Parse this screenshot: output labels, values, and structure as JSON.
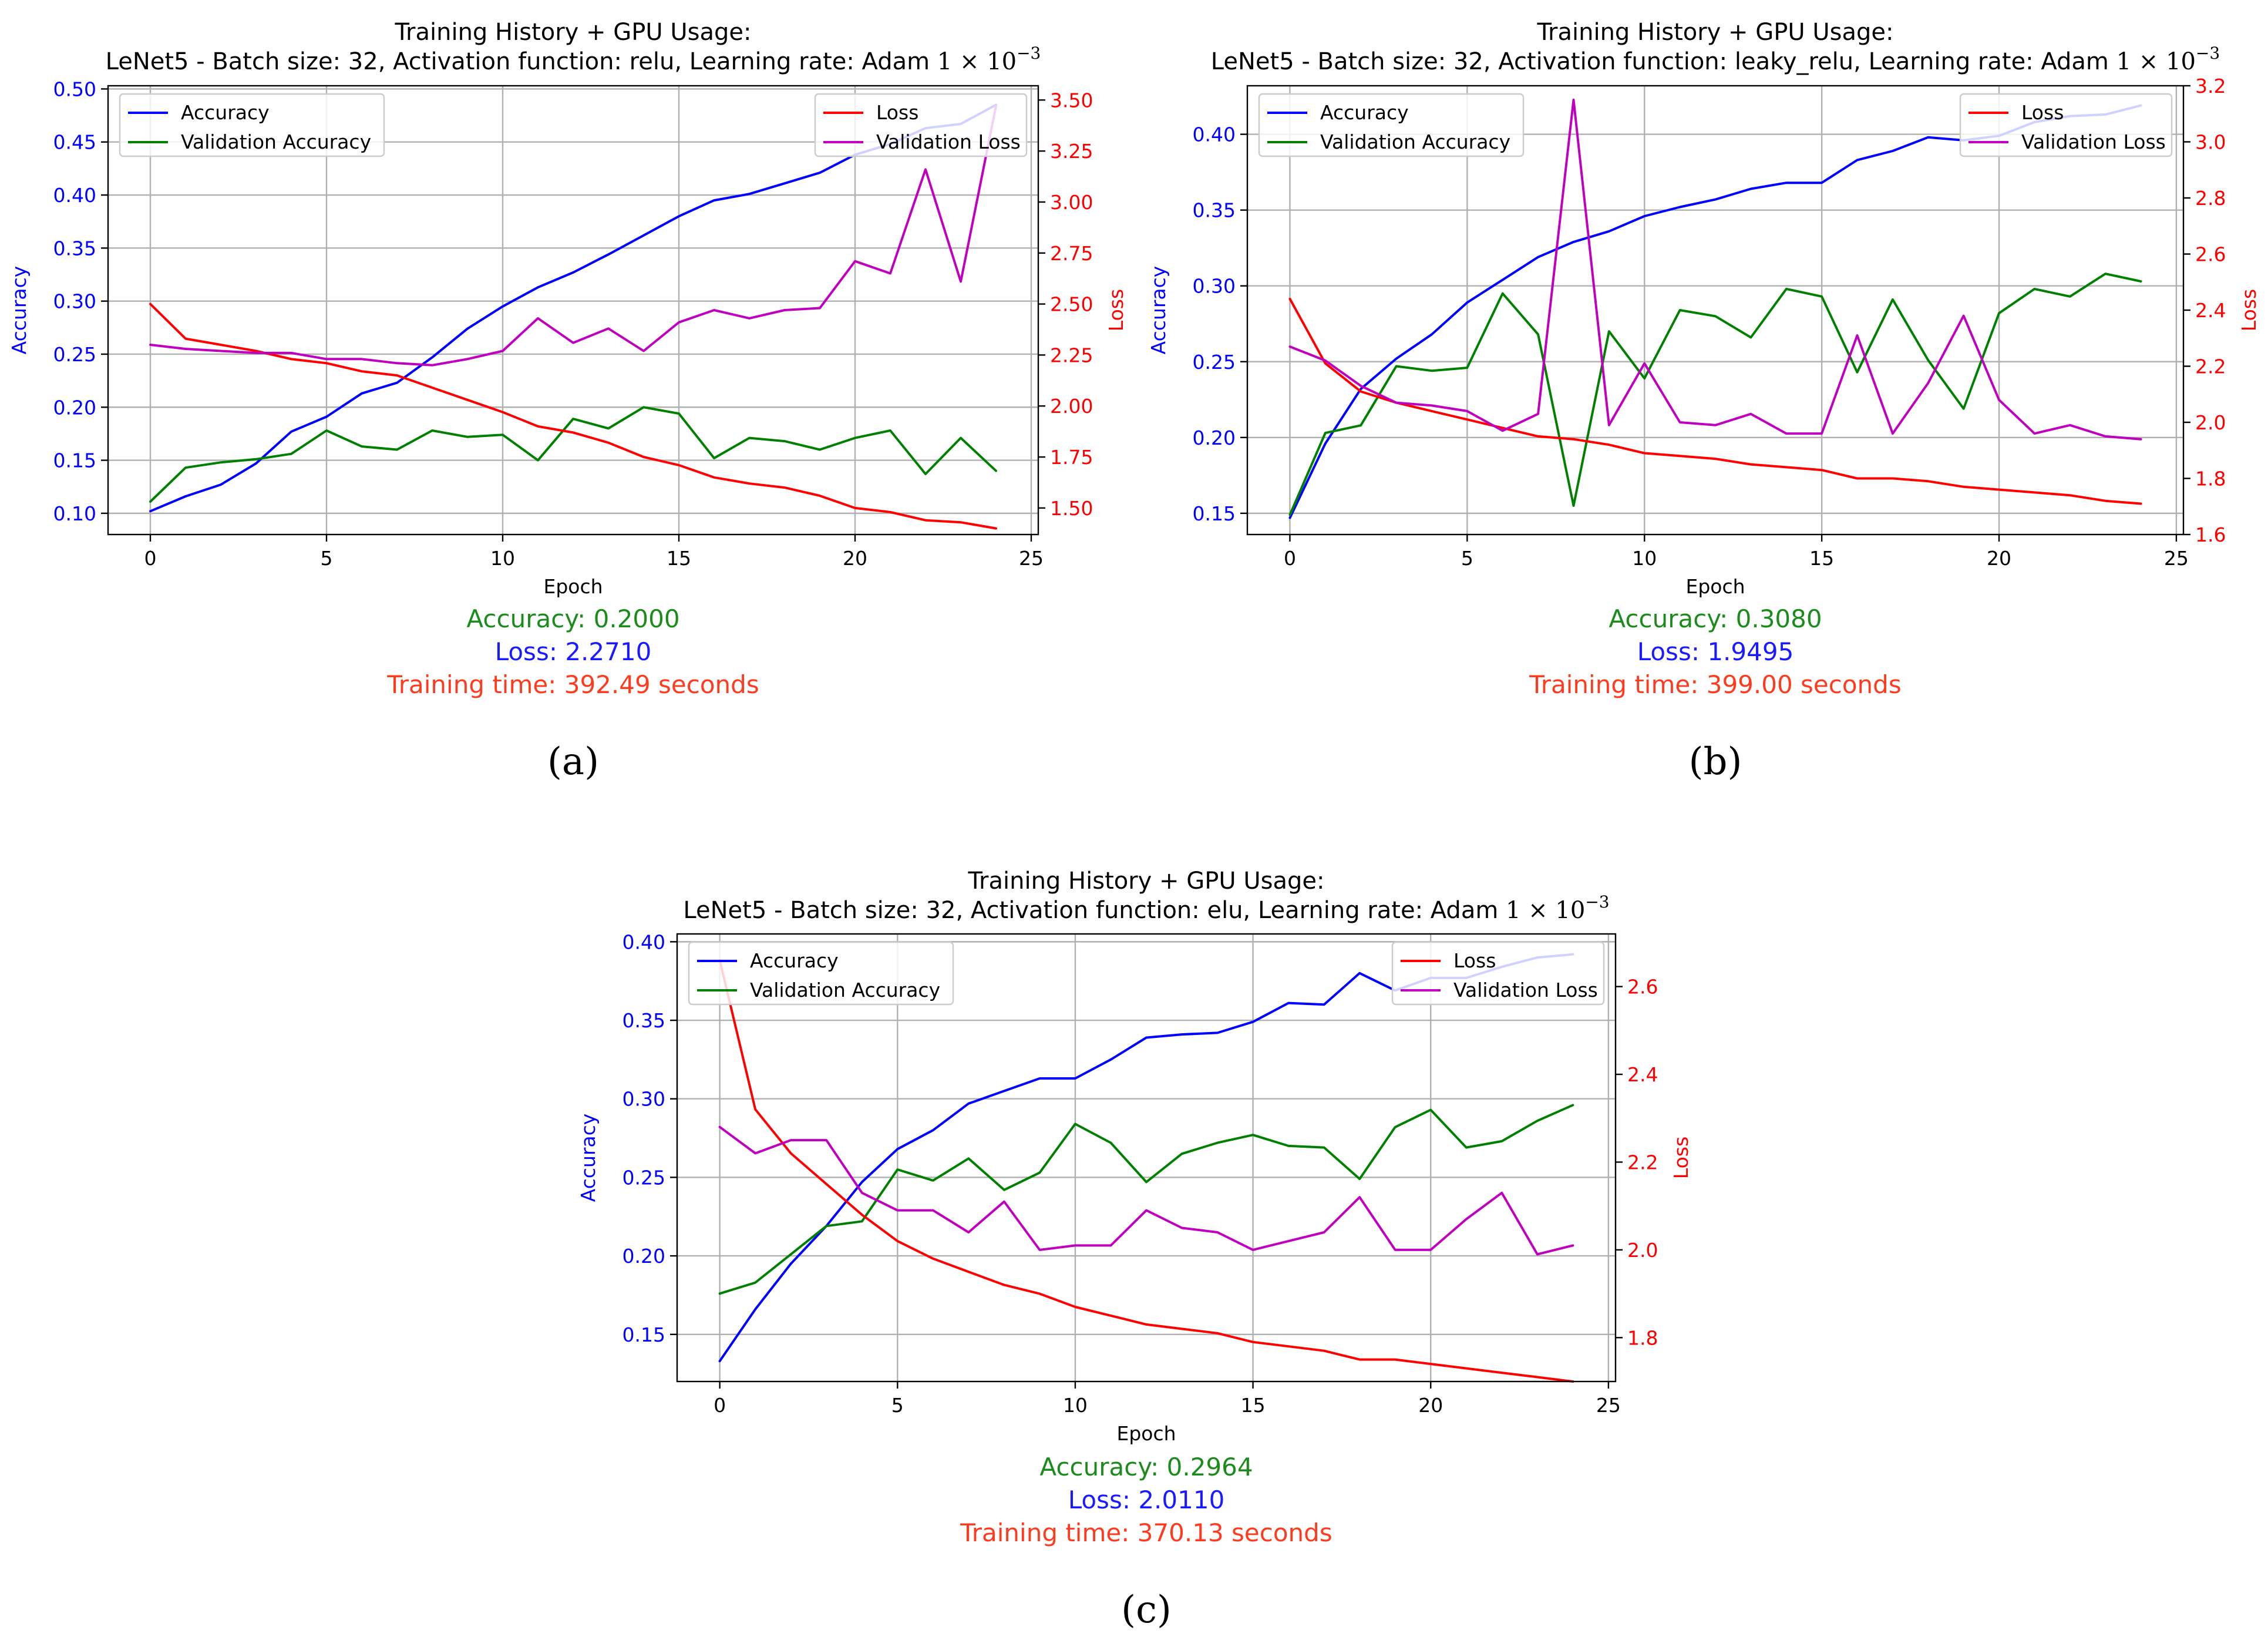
{
  "colors": {
    "accuracy": "#0000ff",
    "validation_accuracy": "#008000",
    "loss": "#ff0000",
    "validation_loss": "#bf00bf",
    "summary_accuracy": "#1b8c1b",
    "summary_loss": "#1a1aff",
    "summary_time": "#ff3b1f",
    "grid": "#b0b0b0"
  },
  "chart_data": [
    {
      "type": "line",
      "panel_label": "(a)",
      "title_line1": "Training History + GPU Usage:",
      "title_line2_prefix": "LeNet5 - Batch size: 32, Activation function: relu, Learning rate: Adam",
      "title_line2_math": "1 × 10",
      "title_line2_exp": "−3",
      "xlabel": "Epoch",
      "ylabel_left": "Accuracy",
      "ylabel_right": "Loss",
      "xlim": [
        -1.2,
        25.2
      ],
      "ylim_left": [
        0.08,
        0.503
      ],
      "ylim_right": [
        1.37,
        3.57
      ],
      "xticks": [
        "0",
        "5",
        "10",
        "15",
        "20",
        "25"
      ],
      "yticks_left": [
        "0.10",
        "0.15",
        "0.20",
        "0.25",
        "0.30",
        "0.35",
        "0.40",
        "0.45",
        "0.50"
      ],
      "yticks_right": [
        "1.50",
        "1.75",
        "2.00",
        "2.25",
        "2.50",
        "2.75",
        "3.00",
        "3.25",
        "3.50"
      ],
      "x": [
        0,
        1,
        2,
        3,
        4,
        5,
        6,
        7,
        8,
        9,
        10,
        11,
        12,
        13,
        14,
        15,
        16,
        17,
        18,
        19,
        20,
        21,
        22,
        23,
        24
      ],
      "series_left": [
        {
          "name": "Accuracy",
          "color_key": "accuracy",
          "values": [
            0.102,
            0.116,
            0.127,
            0.147,
            0.177,
            0.191,
            0.213,
            0.223,
            0.247,
            0.274,
            0.295,
            0.313,
            0.327,
            0.344,
            0.362,
            0.38,
            0.395,
            0.401,
            0.411,
            0.421,
            0.438,
            0.448,
            0.463,
            0.467,
            0.485
          ]
        },
        {
          "name": "Validation Accuracy",
          "color_key": "validation_accuracy",
          "values": [
            0.111,
            0.143,
            0.148,
            0.151,
            0.156,
            0.178,
            0.163,
            0.16,
            0.178,
            0.172,
            0.174,
            0.15,
            0.189,
            0.18,
            0.2,
            0.194,
            0.152,
            0.171,
            0.168,
            0.16,
            0.171,
            0.178,
            0.137,
            0.171,
            0.14
          ]
        }
      ],
      "series_right": [
        {
          "name": "Loss",
          "color_key": "loss",
          "values": [
            2.5,
            2.33,
            2.3,
            2.27,
            2.23,
            2.21,
            2.17,
            2.15,
            2.09,
            2.03,
            1.97,
            1.9,
            1.87,
            1.82,
            1.75,
            1.71,
            1.65,
            1.62,
            1.6,
            1.56,
            1.5,
            1.48,
            1.44,
            1.43,
            1.4
          ]
        },
        {
          "name": "Validation Loss",
          "color_key": "validation_loss",
          "values": [
            2.3,
            2.28,
            2.27,
            2.26,
            2.26,
            2.23,
            2.23,
            2.21,
            2.2,
            2.23,
            2.27,
            2.43,
            2.31,
            2.38,
            2.27,
            2.41,
            2.47,
            2.43,
            2.47,
            2.48,
            2.71,
            2.65,
            3.16,
            2.61,
            3.47
          ]
        }
      ],
      "legend_left": [
        "Accuracy",
        "Validation Accuracy"
      ],
      "legend_right": [
        "Loss",
        "Validation Loss"
      ],
      "legend_left_position": "upper-left",
      "legend_right_position": "upper-right",
      "grid": true,
      "summary": {
        "accuracy": "Accuracy: 0.2000",
        "loss": "Loss: 2.2710",
        "time": "Training time: 392.49 seconds"
      }
    },
    {
      "type": "line",
      "panel_label": "(b)",
      "title_line1": "Training History + GPU Usage:",
      "title_line2_prefix": "LeNet5 - Batch size: 32, Activation function: leaky_relu, Learning rate: Adam",
      "title_line2_math": "1 × 10",
      "title_line2_exp": "−3",
      "xlabel": "Epoch",
      "ylabel_left": "Accuracy",
      "ylabel_right": "Loss",
      "xlim": [
        -1.2,
        25.2
      ],
      "ylim_left": [
        0.136,
        0.432
      ],
      "ylim_right": [
        1.6,
        3.2
      ],
      "xticks": [
        "0",
        "5",
        "10",
        "15",
        "20",
        "25"
      ],
      "yticks_left": [
        "0.15",
        "0.20",
        "0.25",
        "0.30",
        "0.35",
        "0.40"
      ],
      "yticks_right": [
        "1.6",
        "1.8",
        "2.0",
        "2.2",
        "2.4",
        "2.6",
        "2.8",
        "3.0",
        "3.2"
      ],
      "x": [
        0,
        1,
        2,
        3,
        4,
        5,
        6,
        7,
        8,
        9,
        10,
        11,
        12,
        13,
        14,
        15,
        16,
        17,
        18,
        19,
        20,
        21,
        22,
        23,
        24
      ],
      "series_left": [
        {
          "name": "Accuracy",
          "color_key": "accuracy",
          "values": [
            0.147,
            0.196,
            0.232,
            0.252,
            0.268,
            0.289,
            0.304,
            0.319,
            0.329,
            0.336,
            0.346,
            0.352,
            0.357,
            0.364,
            0.368,
            0.368,
            0.383,
            0.389,
            0.398,
            0.396,
            0.399,
            0.408,
            0.412,
            0.413,
            0.419
          ]
        },
        {
          "name": "Validation Accuracy",
          "color_key": "validation_accuracy",
          "values": [
            0.149,
            0.203,
            0.208,
            0.247,
            0.244,
            0.246,
            0.295,
            0.268,
            0.155,
            0.27,
            0.239,
            0.284,
            0.28,
            0.266,
            0.298,
            0.293,
            0.243,
            0.291,
            0.251,
            0.219,
            0.282,
            0.298,
            0.293,
            0.308,
            0.303
          ]
        }
      ],
      "series_right": [
        {
          "name": "Loss",
          "color_key": "loss",
          "values": [
            2.44,
            2.21,
            2.11,
            2.07,
            2.04,
            2.01,
            1.98,
            1.95,
            1.94,
            1.92,
            1.89,
            1.88,
            1.87,
            1.85,
            1.84,
            1.83,
            1.8,
            1.8,
            1.79,
            1.77,
            1.76,
            1.75,
            1.74,
            1.72,
            1.71
          ]
        },
        {
          "name": "Validation Loss",
          "color_key": "validation_loss",
          "values": [
            2.27,
            2.22,
            2.13,
            2.07,
            2.06,
            2.04,
            1.97,
            2.03,
            3.15,
            1.99,
            2.21,
            2.0,
            1.99,
            2.03,
            1.96,
            1.96,
            2.31,
            1.96,
            2.14,
            2.38,
            2.08,
            1.96,
            1.99,
            1.95,
            1.94
          ]
        }
      ],
      "legend_left": [
        "Accuracy",
        "Validation Accuracy"
      ],
      "legend_right": [
        "Loss",
        "Validation Loss"
      ],
      "legend_left_position": "upper-left",
      "legend_right_position": "upper-right",
      "grid": true,
      "summary": {
        "accuracy": "Accuracy: 0.3080",
        "loss": "Loss: 1.9495",
        "time": "Training time: 399.00 seconds"
      }
    },
    {
      "type": "line",
      "panel_label": "(c)",
      "title_line1": "Training History + GPU Usage:",
      "title_line2_prefix": "LeNet5 - Batch size: 32, Activation function: elu, Learning rate: Adam",
      "title_line2_math": "1 × 10",
      "title_line2_exp": "−3",
      "xlabel": "Epoch",
      "ylabel_left": "Accuracy",
      "ylabel_right": "Loss",
      "xlim": [
        -1.2,
        25.2
      ],
      "ylim_left": [
        0.12,
        0.405
      ],
      "ylim_right": [
        1.7,
        2.72
      ],
      "xticks": [
        "0",
        "5",
        "10",
        "15",
        "20",
        "25"
      ],
      "yticks_left": [
        "0.15",
        "0.20",
        "0.25",
        "0.30",
        "0.35",
        "0.40"
      ],
      "yticks_right": [
        "1.8",
        "2.0",
        "2.2",
        "2.4",
        "2.6"
      ],
      "x": [
        0,
        1,
        2,
        3,
        4,
        5,
        6,
        7,
        8,
        9,
        10,
        11,
        12,
        13,
        14,
        15,
        16,
        17,
        18,
        19,
        20,
        21,
        22,
        23,
        24
      ],
      "series_left": [
        {
          "name": "Accuracy",
          "color_key": "accuracy",
          "values": [
            0.133,
            0.166,
            0.195,
            0.219,
            0.247,
            0.268,
            0.28,
            0.297,
            0.305,
            0.313,
            0.313,
            0.325,
            0.339,
            0.341,
            0.342,
            0.349,
            0.361,
            0.36,
            0.38,
            0.369,
            0.377,
            0.377,
            0.384,
            0.39,
            0.392
          ]
        },
        {
          "name": "Validation Accuracy",
          "color_key": "validation_accuracy",
          "values": [
            0.176,
            0.183,
            0.201,
            0.219,
            0.222,
            0.255,
            0.248,
            0.262,
            0.242,
            0.253,
            0.284,
            0.272,
            0.247,
            0.265,
            0.272,
            0.277,
            0.27,
            0.269,
            0.249,
            0.282,
            0.293,
            0.269,
            0.273,
            0.286,
            0.296
          ]
        },
        {
          "name": "_",
          "color_key": "accuracy",
          "values": []
        }
      ],
      "series_right": [
        {
          "name": "Loss",
          "color_key": "loss",
          "values": [
            2.66,
            2.32,
            2.22,
            2.15,
            2.08,
            2.02,
            1.98,
            1.95,
            1.92,
            1.9,
            1.87,
            1.85,
            1.83,
            1.82,
            1.81,
            1.79,
            1.78,
            1.77,
            1.75,
            1.75,
            1.74,
            1.73,
            1.72,
            1.71,
            1.7
          ]
        },
        {
          "name": "Validation Loss",
          "color_key": "validation_loss",
          "values": [
            2.28,
            2.22,
            2.25,
            2.25,
            2.13,
            2.09,
            2.09,
            2.04,
            2.11,
            2.0,
            2.01,
            2.01,
            2.09,
            2.05,
            2.04,
            2.0,
            2.02,
            2.04,
            2.12,
            2.0,
            2.0,
            2.07,
            2.13,
            1.99,
            2.01
          ]
        }
      ],
      "legend_left": [
        "Accuracy",
        "Validation Accuracy"
      ],
      "legend_right": [
        "Loss",
        "Validation Loss"
      ],
      "legend_left_position": "upper-left",
      "legend_right_position": "upper-right",
      "grid": true,
      "summary": {
        "accuracy": "Accuracy: 0.2964",
        "loss": "Loss: 2.0110",
        "time": "Training time: 370.13 seconds"
      }
    }
  ]
}
